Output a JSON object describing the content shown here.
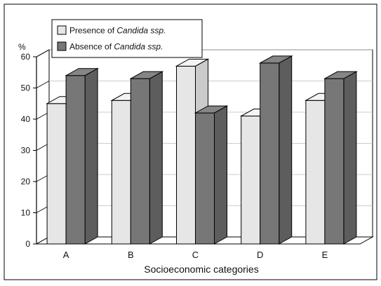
{
  "chart_data": {
    "type": "bar",
    "categories": [
      "A",
      "B",
      "C",
      "D",
      "E"
    ],
    "series": [
      {
        "name_prefix": "Presence of ",
        "name_italic": "Candida ssp.",
        "values": [
          45,
          46,
          57,
          41,
          46
        ],
        "color": "#e6e6e6"
      },
      {
        "name_prefix": "Absence of ",
        "name_italic": "Candida ssp.",
        "values": [
          54,
          53,
          42,
          58,
          53
        ],
        "color": "#777777"
      }
    ],
    "ylabel": "%",
    "xlabel": "Socioeconomic categories",
    "ylim": [
      0,
      60
    ],
    "yticks": [
      0,
      10,
      20,
      30,
      40,
      50,
      60
    ],
    "grid": true,
    "legend": "top-left"
  }
}
